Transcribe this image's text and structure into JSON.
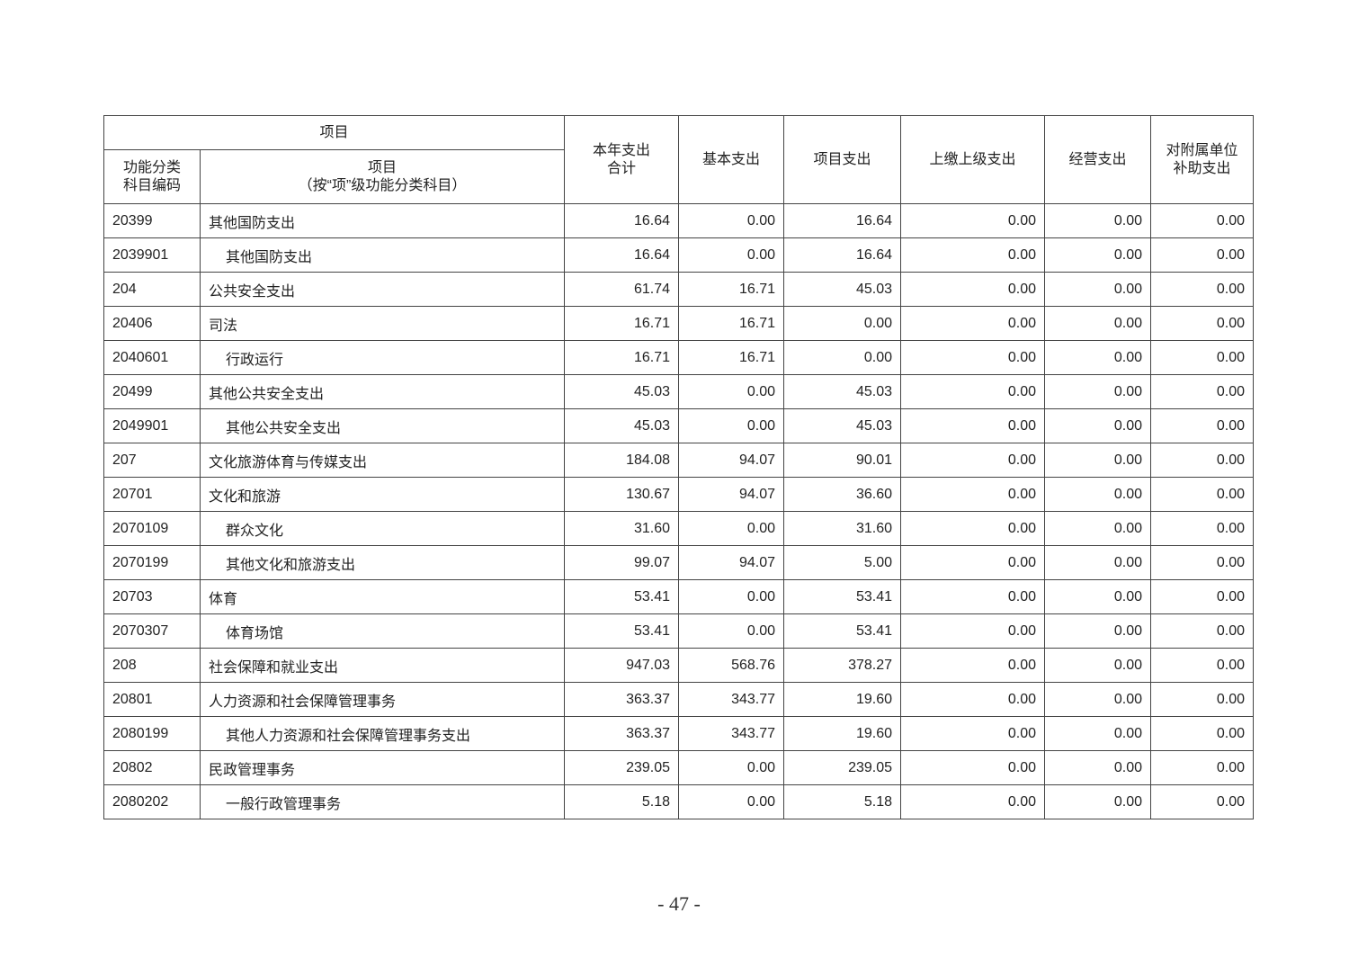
{
  "table": {
    "header": {
      "item_group": "项目",
      "code": "功能分类\n科目编码",
      "name_line1": "项目",
      "name_line2": "（按“项”级功能分类科目）",
      "total": "本年支出\n合计",
      "basic": "基本支出",
      "project": "项目支出",
      "upper": "上缴上级支出",
      "business": "经营支出",
      "subsidiary": "对附属单位\n补助支出"
    },
    "rows": [
      {
        "code": "20399",
        "name": "其他国防支出",
        "values": [
          "16.64",
          "0.00",
          "16.64",
          "0.00",
          "0.00",
          "0.00"
        ]
      },
      {
        "code": "2039901",
        "name": "其他国防支出",
        "values": [
          "16.64",
          "0.00",
          "16.64",
          "0.00",
          "0.00",
          "0.00"
        ]
      },
      {
        "code": "204",
        "name": "公共安全支出",
        "values": [
          "61.74",
          "16.71",
          "45.03",
          "0.00",
          "0.00",
          "0.00"
        ]
      },
      {
        "code": "20406",
        "name": "司法",
        "values": [
          "16.71",
          "16.71",
          "0.00",
          "0.00",
          "0.00",
          "0.00"
        ]
      },
      {
        "code": "2040601",
        "name": "行政运行",
        "values": [
          "16.71",
          "16.71",
          "0.00",
          "0.00",
          "0.00",
          "0.00"
        ]
      },
      {
        "code": "20499",
        "name": "其他公共安全支出",
        "values": [
          "45.03",
          "0.00",
          "45.03",
          "0.00",
          "0.00",
          "0.00"
        ]
      },
      {
        "code": "2049901",
        "name": "其他公共安全支出",
        "values": [
          "45.03",
          "0.00",
          "45.03",
          "0.00",
          "0.00",
          "0.00"
        ]
      },
      {
        "code": "207",
        "name": "文化旅游体育与传媒支出",
        "values": [
          "184.08",
          "94.07",
          "90.01",
          "0.00",
          "0.00",
          "0.00"
        ]
      },
      {
        "code": "20701",
        "name": "文化和旅游",
        "values": [
          "130.67",
          "94.07",
          "36.60",
          "0.00",
          "0.00",
          "0.00"
        ]
      },
      {
        "code": "2070109",
        "name": "群众文化",
        "values": [
          "31.60",
          "0.00",
          "31.60",
          "0.00",
          "0.00",
          "0.00"
        ]
      },
      {
        "code": "2070199",
        "name": "其他文化和旅游支出",
        "values": [
          "99.07",
          "94.07",
          "5.00",
          "0.00",
          "0.00",
          "0.00"
        ]
      },
      {
        "code": "20703",
        "name": "体育",
        "values": [
          "53.41",
          "0.00",
          "53.41",
          "0.00",
          "0.00",
          "0.00"
        ]
      },
      {
        "code": "2070307",
        "name": "体育场馆",
        "values": [
          "53.41",
          "0.00",
          "53.41",
          "0.00",
          "0.00",
          "0.00"
        ]
      },
      {
        "code": "208",
        "name": "社会保障和就业支出",
        "values": [
          "947.03",
          "568.76",
          "378.27",
          "0.00",
          "0.00",
          "0.00"
        ]
      },
      {
        "code": "20801",
        "name": "人力资源和社会保障管理事务",
        "values": [
          "363.37",
          "343.77",
          "19.60",
          "0.00",
          "0.00",
          "0.00"
        ]
      },
      {
        "code": "2080199",
        "name": "其他人力资源和社会保障管理事务支出",
        "values": [
          "363.37",
          "343.77",
          "19.60",
          "0.00",
          "0.00",
          "0.00"
        ]
      },
      {
        "code": "20802",
        "name": "民政管理事务",
        "values": [
          "239.05",
          "0.00",
          "239.05",
          "0.00",
          "0.00",
          "0.00"
        ]
      },
      {
        "code": "2080202",
        "name": "一般行政管理事务",
        "values": [
          "5.18",
          "0.00",
          "5.18",
          "0.00",
          "0.00",
          "0.00"
        ]
      }
    ]
  },
  "footer": {
    "page_number": "- 47 -"
  }
}
